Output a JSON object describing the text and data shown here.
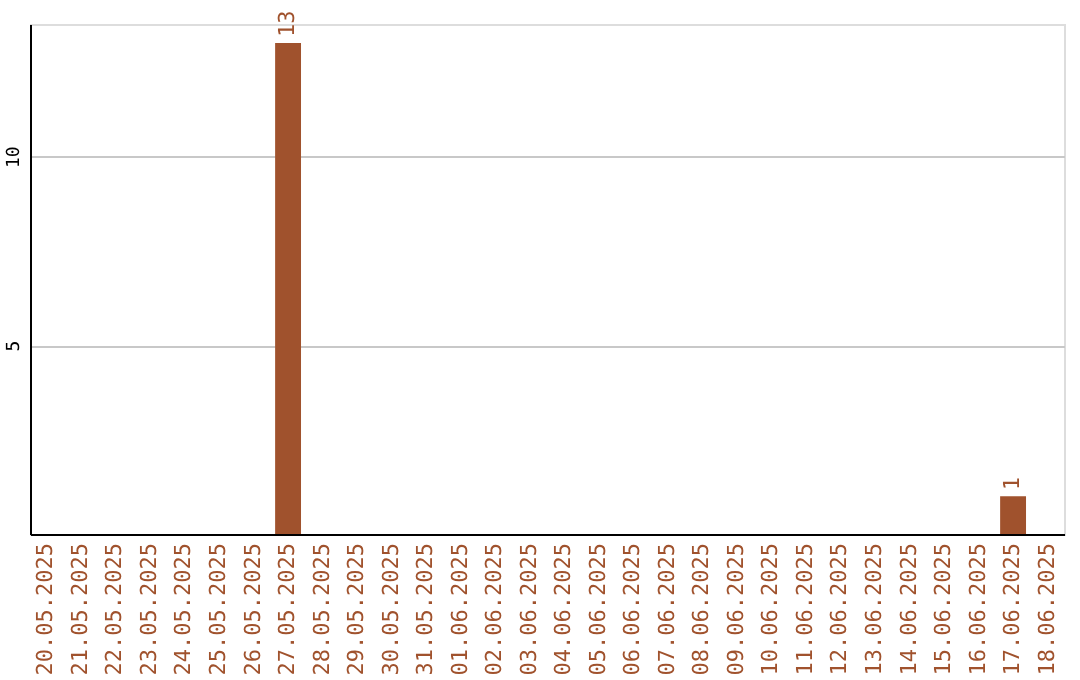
{
  "chart_data": {
    "type": "bar",
    "categories": [
      "20.05.2025",
      "21.05.2025",
      "22.05.2025",
      "23.05.2025",
      "24.05.2025",
      "25.05.2025",
      "26.05.2025",
      "27.05.2025",
      "28.05.2025",
      "29.05.2025",
      "30.05.2025",
      "31.05.2025",
      "01.06.2025",
      "02.06.2025",
      "03.06.2025",
      "04.06.2025",
      "05.06.2025",
      "06.06.2025",
      "07.06.2025",
      "08.06.2025",
      "09.06.2025",
      "10.06.2025",
      "11.06.2025",
      "12.06.2025",
      "13.06.2025",
      "14.06.2025",
      "15.06.2025",
      "16.06.2025",
      "17.06.2025",
      "18.06.2025"
    ],
    "values": [
      0,
      0,
      0,
      0,
      0,
      0,
      0,
      13,
      0,
      0,
      0,
      0,
      0,
      0,
      0,
      0,
      0,
      0,
      0,
      0,
      0,
      0,
      0,
      0,
      0,
      0,
      0,
      0,
      1,
      0
    ],
    "value_labels": [
      null,
      null,
      null,
      null,
      null,
      null,
      null,
      "13",
      null,
      null,
      null,
      null,
      null,
      null,
      null,
      null,
      null,
      null,
      null,
      null,
      null,
      null,
      null,
      null,
      null,
      null,
      null,
      null,
      "1",
      null
    ],
    "color": "#a0522d",
    "ylim": [
      0,
      13.5
    ],
    "yticks": [
      5,
      10
    ],
    "grid": "y"
  }
}
